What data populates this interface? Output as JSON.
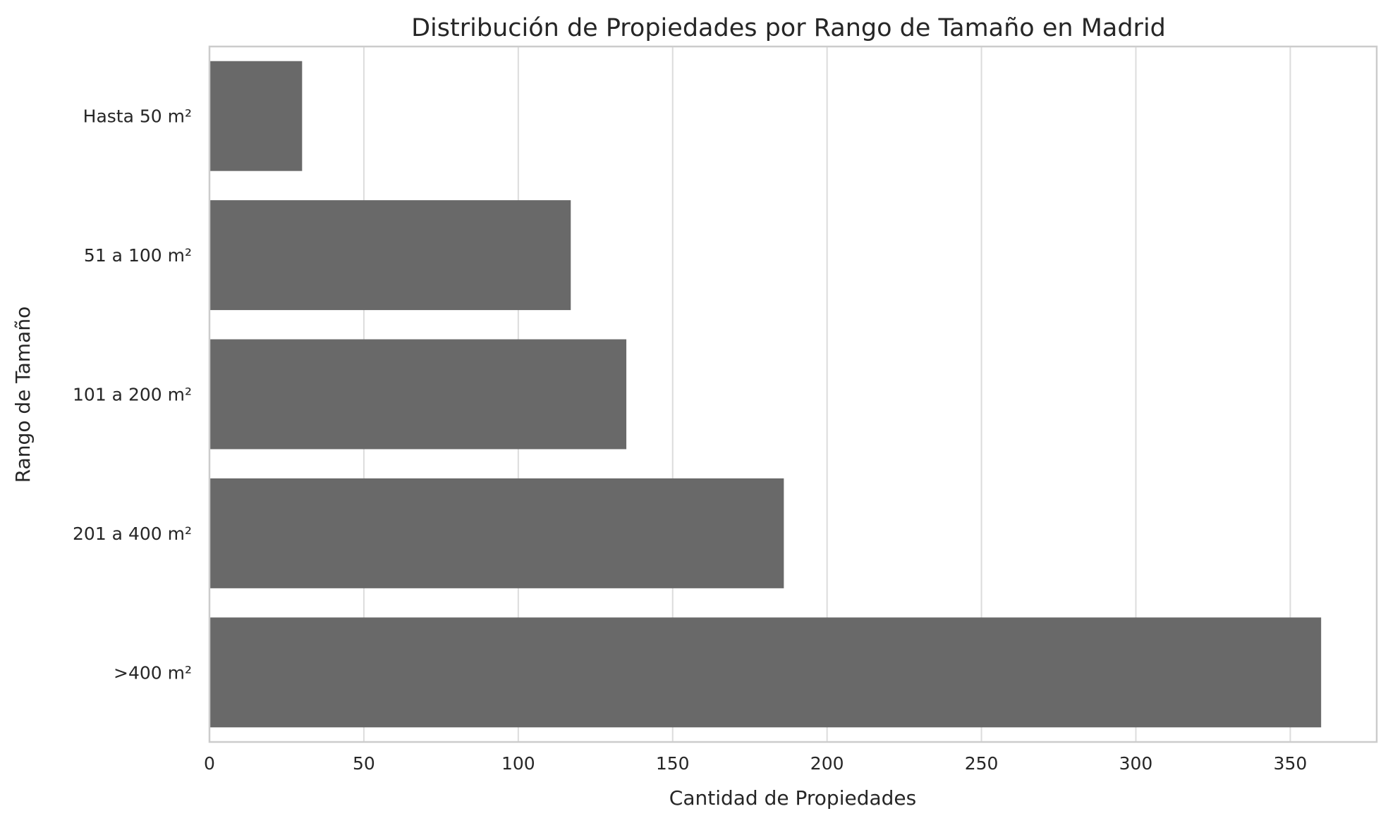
{
  "chart_data": {
    "type": "bar",
    "orientation": "horizontal",
    "title": "Distribución de Propiedades por Rango de Tamaño en Madrid",
    "xlabel": "Cantidad de Propiedades",
    "ylabel": "Rango de Tamaño",
    "categories": [
      "Hasta 50 m²",
      "51 a 100 m²",
      "101 a 200 m²",
      "201 a 400 m²",
      ">400 m²"
    ],
    "values": [
      30,
      117,
      135,
      186,
      360
    ],
    "xlim": [
      0,
      378
    ],
    "xticks": [
      0,
      50,
      100,
      150,
      200,
      250,
      300,
      350
    ],
    "grid": true,
    "bar_color": "#696969",
    "legend": "none"
  }
}
